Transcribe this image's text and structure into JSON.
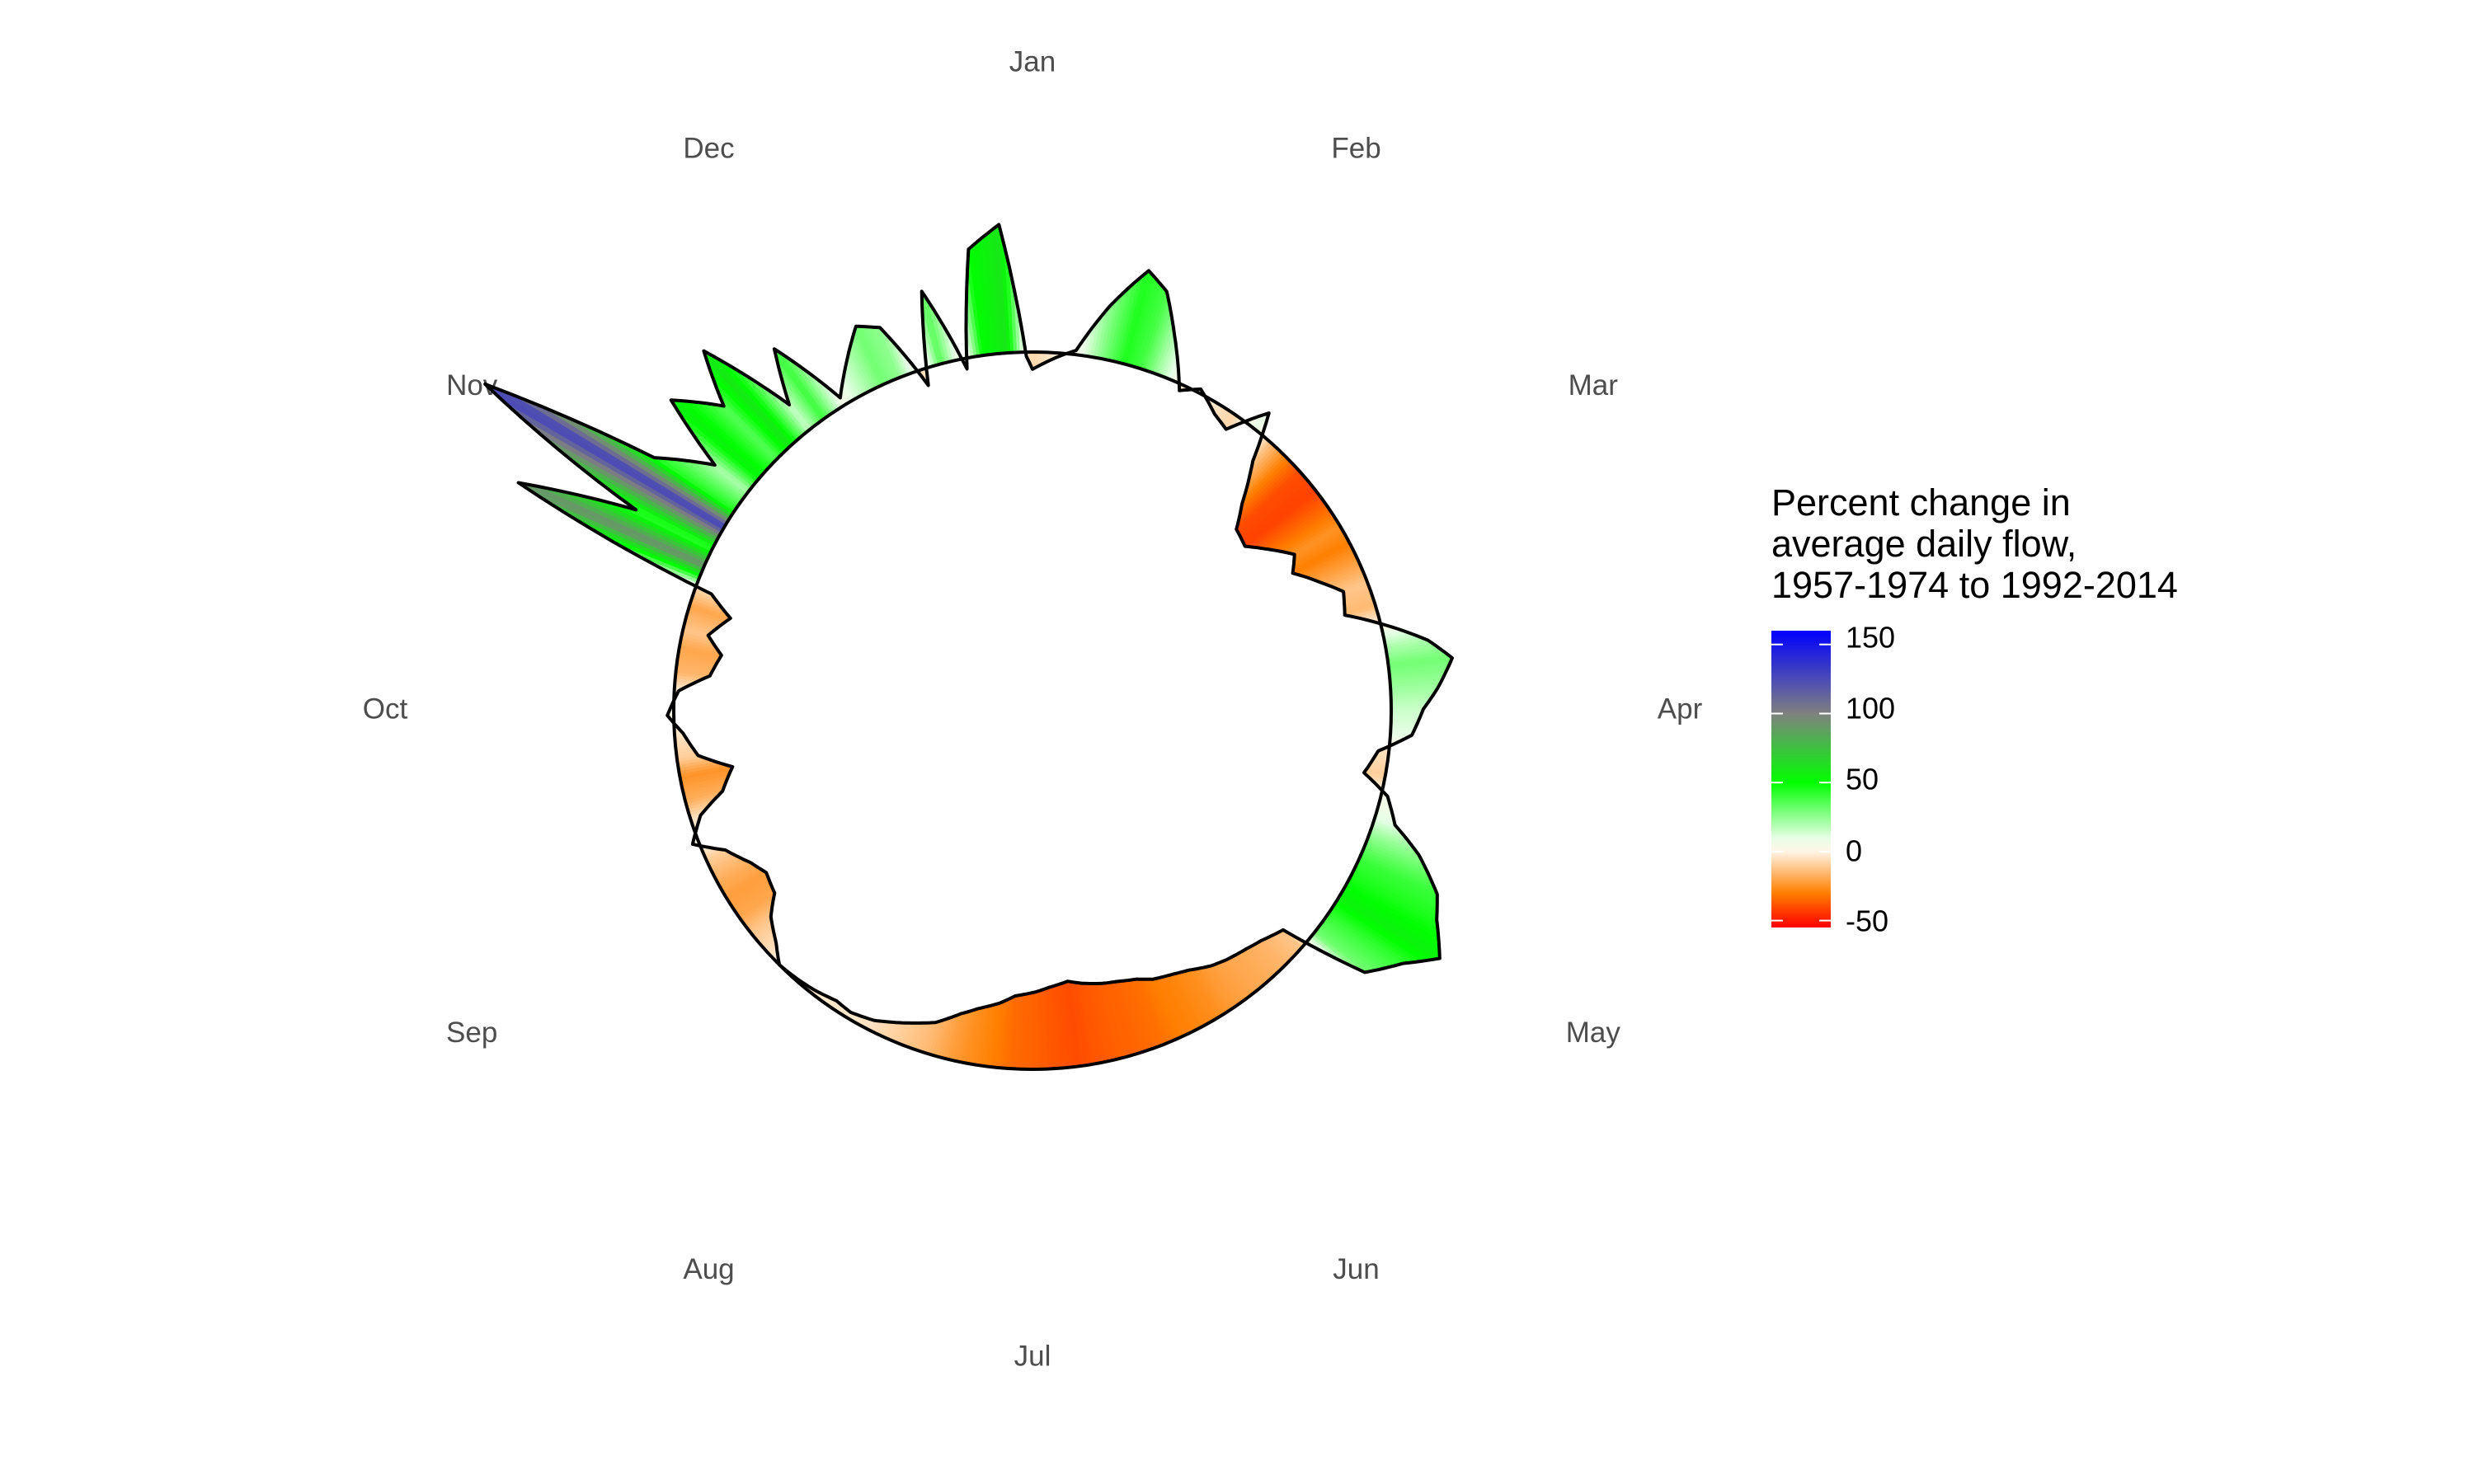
{
  "chart_data": {
    "type": "area",
    "coordinate_system": "polar",
    "start_month_at_top": "Jan",
    "direction": "clockwise",
    "baseline_value": 0,
    "months": [
      "Jan",
      "Feb",
      "Mar",
      "Apr",
      "May",
      "Jun",
      "Jul",
      "Aug",
      "Sep",
      "Oct",
      "Nov",
      "Dec"
    ],
    "legend": {
      "title_lines": [
        "Percent change in",
        "average daily flow,",
        "1957-1974 to 1992-2014"
      ],
      "ticks": [
        "150",
        "100",
        "50",
        "0",
        "-50"
      ],
      "tick_values": [
        150,
        100,
        50,
        0,
        -50
      ],
      "range": [
        -55,
        160
      ],
      "position": "right"
    },
    "color_scale": [
      {
        "value": -55,
        "color": "#ff0000"
      },
      {
        "value": -30,
        "color": "#ff7f00"
      },
      {
        "value": 0,
        "color": "#fff5e6"
      },
      {
        "value": 10,
        "color": "#e6ffe6"
      },
      {
        "value": 50,
        "color": "#00ff00"
      },
      {
        "value": 100,
        "color": "#808080"
      },
      {
        "value": 160,
        "color": "#0000ff"
      }
    ],
    "series": [
      {
        "day_of_year": [
          1,
          5,
          8,
          12,
          16,
          19,
          22,
          26,
          29,
          33,
          36,
          40,
          43,
          47,
          50,
          54,
          57,
          61,
          64,
          68,
          71,
          75,
          78,
          82,
          85,
          89,
          92,
          96,
          99,
          103,
          106,
          110,
          113,
          117,
          120,
          124,
          127,
          131,
          134,
          138,
          141,
          145,
          148,
          152,
          155,
          159,
          162,
          166,
          169,
          173,
          176,
          180,
          183,
          187,
          190,
          194,
          197,
          201,
          204,
          208,
          211,
          215,
          218,
          222,
          225,
          229,
          232,
          236,
          239,
          243,
          246,
          250,
          253,
          257,
          260,
          264,
          267,
          271,
          274,
          278,
          281,
          285,
          288,
          292,
          295,
          299,
          302,
          306,
          309,
          313,
          316,
          320,
          323,
          327,
          330,
          334,
          337,
          341,
          344,
          348,
          351,
          355,
          358,
          362,
          365
        ],
        "percent_change": [
          -8,
          -2,
          2,
          25,
          45,
          38,
          20,
          -3,
          2,
          -5,
          -8,
          10,
          -12,
          -30,
          -40,
          -42,
          -35,
          -25,
          -30,
          -20,
          -12,
          -15,
          0,
          20,
          30,
          22,
          15,
          10,
          -5,
          -10,
          3,
          10,
          25,
          40,
          45,
          55,
          42,
          30,
          -12,
          -16,
          -18,
          -20,
          -22,
          -26,
          -28,
          -30,
          -33,
          -35,
          -36,
          -38,
          -40,
          -38,
          -36,
          -34,
          -30,
          -26,
          -22,
          -15,
          -12,
          -8,
          -5,
          -3,
          -4,
          -2,
          -1,
          0,
          -6,
          -12,
          -20,
          -22,
          -18,
          -10,
          3,
          -5,
          -18,
          -25,
          -10,
          -4,
          3,
          -2,
          -16,
          -20,
          -12,
          -20,
          -8,
          95,
          40,
          130,
          45,
          20,
          55,
          35,
          60,
          15,
          40,
          4,
          15,
          30,
          25,
          -8,
          35,
          -5,
          50,
          60,
          -2
        ]
      }
    ]
  }
}
